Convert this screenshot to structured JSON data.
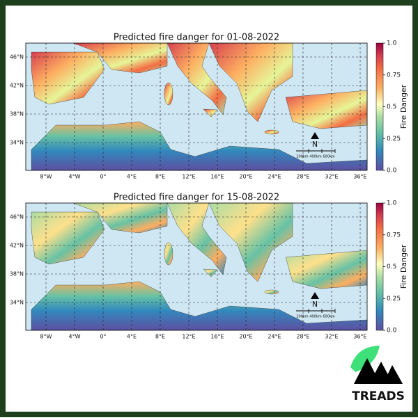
{
  "panels": [
    {
      "title": "Predicted fire danger for 01-08-2022",
      "lon_ticks": [
        "8°W",
        "4°W",
        "0°",
        "4°E",
        "8°E",
        "12°E",
        "16°E",
        "20°E",
        "24°E",
        "28°E",
        "32°E",
        "36°E"
      ],
      "lat_ticks": [
        "46°N",
        "42°N",
        "38°N",
        "34°N"
      ],
      "colorbar": {
        "label": "Fire Danger",
        "lim": [
          0,
          1
        ],
        "ticks": [
          {
            "value": 0,
            "label": "0.0"
          },
          0.25,
          0.5,
          0.75,
          {
            "value": 1,
            "label": "1.0"
          }
        ]
      },
      "north": "N",
      "scale_bar": [
        "200km",
        "400km",
        "600km"
      ]
    },
    {
      "title": "Predicted fire danger for 15-08-2022",
      "lon_ticks": [
        "8°W",
        "4°W",
        "0°",
        "4°E",
        "8°E",
        "12°E",
        "16°E",
        "20°E",
        "24°E",
        "28°E",
        "32°E",
        "36°E"
      ],
      "lat_ticks": [
        "46°N",
        "42°N",
        "38°N",
        "34°N"
      ],
      "colorbar": {
        "label": "Fire Danger",
        "lim": [
          0,
          1
        ],
        "ticks": [
          {
            "value": 0,
            "label": "0.0"
          },
          0.25,
          0.5,
          0.75,
          {
            "value": 1,
            "label": "1.0"
          }
        ]
      },
      "north": "N",
      "scale_bar": [
        "200km",
        "400km",
        "600km"
      ]
    }
  ],
  "logo": "TREADS"
}
